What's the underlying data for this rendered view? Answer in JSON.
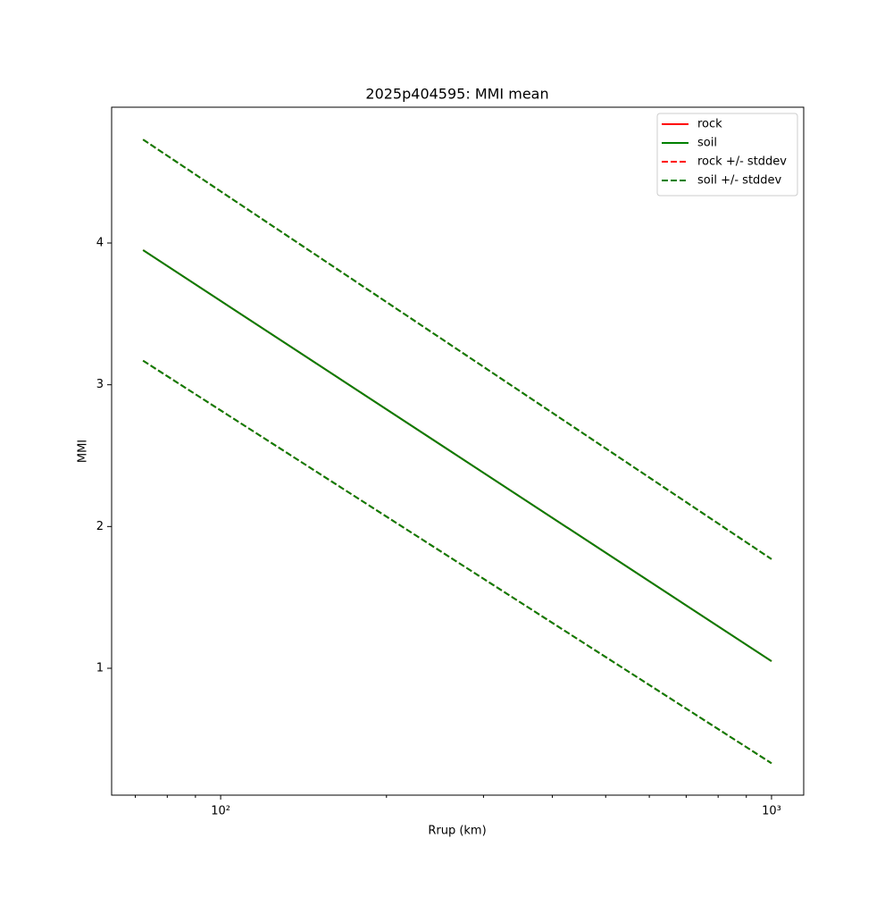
{
  "chart_data": {
    "type": "line",
    "title": "2025p404595: MMI mean",
    "xlabel": "Rrup (km)",
    "ylabel": "MMI",
    "xscale": "log",
    "xlim": [
      63.4,
      1144
    ],
    "ylim": [
      0.105,
      4.958
    ],
    "xticks": [
      {
        "value": 100,
        "label": "10²"
      },
      {
        "value": 1000,
        "label": "10³"
      }
    ],
    "xminorticks": [
      70,
      80,
      90,
      200,
      300,
      400,
      500,
      600,
      700,
      800,
      900
    ],
    "yticks": [
      1,
      2,
      3,
      4
    ],
    "grid": false,
    "legend": "upper right",
    "x": [
      72.3,
      1000
    ],
    "series": [
      {
        "name": "rock",
        "color": "#ff0000",
        "linestyle": "solid",
        "values": [
          3.95,
          1.05
        ]
      },
      {
        "name": "soil",
        "color": "#008000",
        "linestyle": "solid",
        "values": [
          3.95,
          1.05
        ]
      },
      {
        "name": "rock +/- stddev",
        "color": "#ff0000",
        "linestyle": "dashed",
        "upper": [
          4.73,
          1.77
        ],
        "lower": [
          3.17,
          0.33
        ]
      },
      {
        "name": "soil +/- stddev",
        "color": "#008000",
        "linestyle": "dashed",
        "upper": [
          4.73,
          1.77
        ],
        "lower": [
          3.17,
          0.33
        ]
      }
    ]
  }
}
